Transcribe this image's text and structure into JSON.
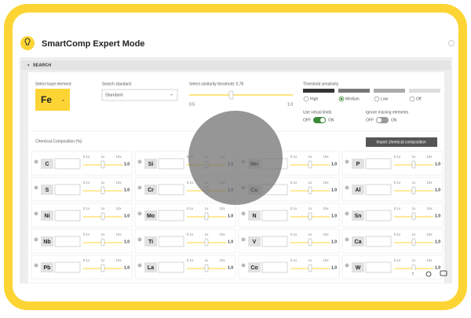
{
  "header": {
    "title": "SmartComp Expert Mode"
  },
  "search": {
    "label": "SEARCH"
  },
  "controls": {
    "base_element": {
      "label": "Select base element:",
      "value": "Fe"
    },
    "standard": {
      "label": "Search standard:",
      "value": "Standard"
    },
    "similarity": {
      "label": "Select similarity threshold: 0.78",
      "min": "0.5",
      "max": "1.0"
    },
    "sensitivity": {
      "label": "Threshold sensitivity",
      "options": [
        "High",
        "Medium",
        "Low",
        "Off"
      ]
    },
    "virtual_limits": {
      "label": "Use virtual limits",
      "off": "OFF",
      "on": "ON"
    },
    "ignore_missing": {
      "label": "Ignore missing elements",
      "off": "OFF",
      "on": "ON"
    }
  },
  "composition": {
    "label": "Chemical Composition (%)",
    "button": "Import chemical composition",
    "scale": [
      "0.1x",
      "1x",
      "10x"
    ],
    "elements": [
      {
        "symbol": "C",
        "value": "1.0"
      },
      {
        "symbol": "Si",
        "value": "1.0"
      },
      {
        "symbol": "Mn",
        "value": "1.0"
      },
      {
        "symbol": "P",
        "value": "1.0"
      },
      {
        "symbol": "S",
        "value": "1.0"
      },
      {
        "symbol": "Cr",
        "value": "1.0"
      },
      {
        "symbol": "Cu",
        "value": "1.0"
      },
      {
        "symbol": "Al",
        "value": "1.0"
      },
      {
        "symbol": "Ni",
        "value": "1.0"
      },
      {
        "symbol": "Mo",
        "value": "1.0"
      },
      {
        "symbol": "N",
        "value": "1.0"
      },
      {
        "symbol": "Sn",
        "value": "1.0"
      },
      {
        "symbol": "Nb",
        "value": "1.0"
      },
      {
        "symbol": "Ti",
        "value": "1.0"
      },
      {
        "symbol": "V",
        "value": "1.0"
      },
      {
        "symbol": "Ca",
        "value": "1.0"
      },
      {
        "symbol": "Pb",
        "value": "1.0"
      },
      {
        "symbol": "La",
        "value": "1.0"
      },
      {
        "symbol": "Co",
        "value": "1.0"
      },
      {
        "symbol": "W",
        "value": "1.0"
      }
    ]
  }
}
